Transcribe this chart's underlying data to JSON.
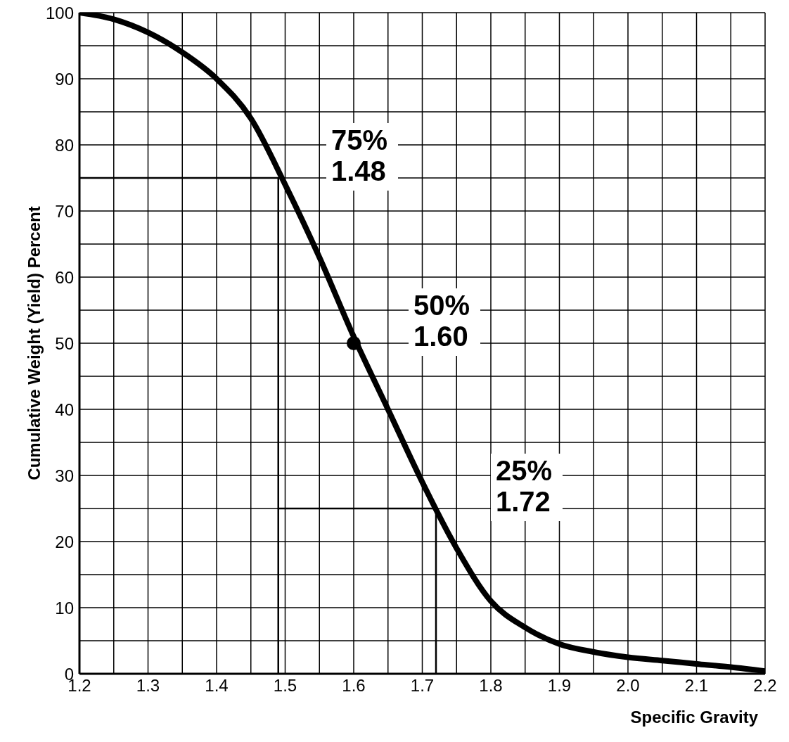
{
  "chart_data": {
    "type": "line",
    "xlabel": "Specific Gravity",
    "ylabel": "Cumulative Weight (Yield) Percent",
    "xlim": [
      1.2,
      2.2
    ],
    "ylim": [
      0,
      100
    ],
    "xticks": [
      1.2,
      {
        "value": 1.25,
        "label": null
      },
      1.3,
      {
        "value": 1.35,
        "label": null
      },
      1.4,
      {
        "value": 1.45,
        "label": null
      },
      1.5,
      {
        "value": 1.55,
        "label": null
      },
      1.6,
      {
        "value": 1.65,
        "label": null
      },
      1.7,
      {
        "value": 1.75,
        "label": null
      },
      1.8,
      {
        "value": 1.85,
        "label": null
      },
      1.9,
      {
        "value": 1.95,
        "label": null
      },
      {
        "value": 2.0,
        "label": "2.0"
      },
      {
        "value": 2.05,
        "label": null
      },
      2.1,
      {
        "value": 2.15,
        "label": null
      },
      2.2
    ],
    "yticks": [
      0,
      {
        "value": 5,
        "label": null
      },
      10,
      {
        "value": 15,
        "label": null
      },
      20,
      {
        "value": 25,
        "label": null
      },
      30,
      {
        "value": 35,
        "label": null
      },
      40,
      {
        "value": 45,
        "label": null
      },
      50,
      {
        "value": 55,
        "label": null
      },
      60,
      {
        "value": 65,
        "label": null
      },
      70,
      {
        "value": 75,
        "label": null
      },
      80,
      {
        "value": 85,
        "label": null
      },
      90,
      {
        "value": 95,
        "label": null
      },
      100
    ],
    "grid": true,
    "legend": false,
    "series": [
      {
        "color": "#000000",
        "x": [
          1.2,
          1.25,
          1.3,
          1.35,
          1.4,
          1.45,
          1.5,
          1.55,
          1.6,
          1.65,
          1.7,
          1.75,
          1.8,
          1.85,
          1.9,
          1.95,
          2.0,
          2.05,
          2.1,
          2.15,
          2.2
        ],
        "values": [
          100,
          99,
          97,
          94,
          90,
          84,
          74,
          63,
          51,
          40,
          29,
          19,
          11,
          7,
          4.5,
          3.3,
          2.5,
          2,
          1.5,
          1,
          0.4
        ]
      },
      {
        "color": "#000000",
        "x": [
          1.2,
          1.49,
          1.49
        ],
        "values": [
          75,
          75,
          0
        ]
      },
      {
        "color": "#000000",
        "x": [
          1.49,
          1.72,
          1.72
        ],
        "values": [
          25,
          25,
          0
        ]
      },
      {
        "type": "scatter",
        "color": "#000000",
        "marker": "circle",
        "x": [
          1.6
        ],
        "values": [
          50
        ]
      }
    ],
    "annotations": [
      {
        "text": "75%\n1.48",
        "x": 1.48,
        "y": 75
      },
      {
        "text": "50%\n1.60",
        "x": 1.6,
        "y": 50
      },
      {
        "text": "25%\n1.72",
        "x": 1.72,
        "y": 25
      }
    ]
  }
}
